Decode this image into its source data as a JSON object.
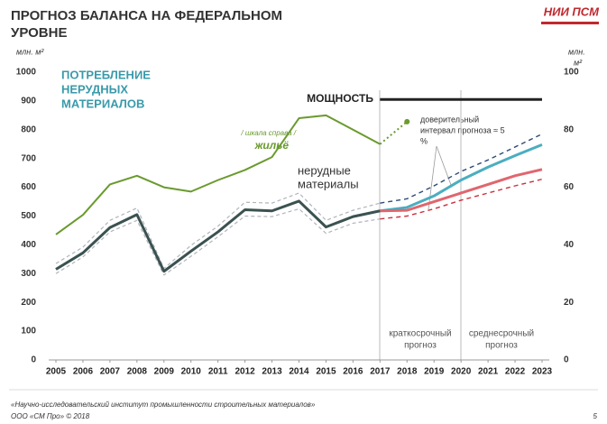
{
  "chart_data": {
    "type": "line",
    "title": [
      "ПРОГНОЗ БАЛАНСА НА ФЕДЕРАЛЬНОМ",
      "УРОВНЕ"
    ],
    "logo": "НИИ ПСМ",
    "y_label": "млн. м²",
    "y2_label": [
      "млн.",
      "м²"
    ],
    "x": [
      2005,
      2006,
      2007,
      2008,
      2009,
      2010,
      2011,
      2012,
      2013,
      2014,
      2015,
      2016,
      2017,
      2018,
      2019,
      2020,
      2021,
      2022,
      2023
    ],
    "ylim": [
      0,
      1000
    ],
    "yticks": [
      0,
      100,
      200,
      300,
      400,
      500,
      600,
      700,
      800,
      900,
      1000
    ],
    "y2lim": [
      0,
      100
    ],
    "y2ticks": [
      0,
      20,
      40,
      60,
      80,
      100
    ],
    "series": [
      {
        "color": "#b0b4bc",
        "dash": "4,3",
        "width": 1.2,
        "values": [
          335,
          392,
          485,
          528,
          318,
          398,
          465,
          548,
          545,
          580,
          485,
          520,
          545,
          null,
          null,
          null,
          null,
          null,
          null
        ]
      },
      {
        "color": "#b0b4bc",
        "dash": "4,3",
        "width": 1.2,
        "values": [
          300,
          358,
          445,
          485,
          295,
          360,
          428,
          500,
          498,
          525,
          440,
          475,
          490,
          null,
          null,
          null,
          null,
          null,
          null
        ]
      },
      {
        "color": "#2e4a78",
        "dash": "5,4",
        "width": 1.4,
        "values": [
          null,
          null,
          null,
          null,
          null,
          null,
          null,
          null,
          null,
          null,
          null,
          null,
          545,
          560,
          605,
          655,
          695,
          740,
          785
        ]
      },
      {
        "color": "#c8323c",
        "dash": "5,4",
        "width": 1.4,
        "values": [
          null,
          null,
          null,
          null,
          null,
          null,
          null,
          null,
          null,
          null,
          null,
          null,
          490,
          500,
          525,
          555,
          580,
          605,
          628
        ]
      },
      {
        "color": "#4aaec0",
        "width": 3,
        "values": [
          null,
          null,
          null,
          null,
          null,
          null,
          null,
          null,
          null,
          null,
          null,
          null,
          518,
          530,
          570,
          625,
          670,
          710,
          748
        ]
      },
      {
        "color": "#e0666e",
        "width": 3,
        "values": [
          null,
          null,
          null,
          null,
          null,
          null,
          null,
          null,
          null,
          null,
          null,
          null,
          518,
          520,
          550,
          580,
          610,
          640,
          662
        ]
      },
      {
        "name": [
          "нерудные",
          "материалы"
        ],
        "color": "#3b5250",
        "width": 3,
        "values": [
          315,
          372,
          460,
          505,
          308,
          378,
          445,
          522,
          518,
          552,
          462,
          498,
          518,
          null,
          null,
          null,
          null,
          null,
          null
        ]
      },
      {
        "name": "жильё",
        "axis": "y2",
        "color": "#6a9a2e",
        "width": 2,
        "values": [
          43.6,
          50.4,
          61,
          64,
          60,
          58.5,
          62.5,
          66,
          70.5,
          84,
          85,
          80,
          75,
          null,
          null,
          null,
          null,
          null,
          null
        ]
      },
      {
        "axis": "y2",
        "color": "#6a9a2e",
        "dash": "2,3",
        "width": 2,
        "marker": true,
        "values": [
          null,
          null,
          null,
          null,
          null,
          null,
          null,
          null,
          null,
          null,
          null,
          null,
          75,
          82.8,
          null,
          null,
          null,
          null,
          null
        ]
      },
      {
        "name": "МОЩНОСТЬ",
        "color": "#222222",
        "width": 3,
        "values": [
          null,
          null,
          null,
          null,
          null,
          null,
          null,
          null,
          null,
          null,
          null,
          null,
          905,
          905,
          905,
          905,
          905,
          905,
          905
        ]
      }
    ],
    "heading": [
      "ПОТРЕБЛЕНИЕ",
      "НЕРУДНЫХ",
      "МАТЕРИАЛОВ"
    ],
    "scale_note": "/ шкала справа /",
    "confidence_note": [
      "доверительный",
      "интервал прогноза ≈ 5",
      "%"
    ],
    "periods": [
      [
        "краткосрочный",
        "прогноз"
      ],
      [
        "среднесрочный",
        "прогноз"
      ]
    ],
    "footer": [
      "«Научно-исследовательский институт промышленности строительных материалов»",
      "ООО «СМ Про» © 2018"
    ],
    "page": "5"
  }
}
